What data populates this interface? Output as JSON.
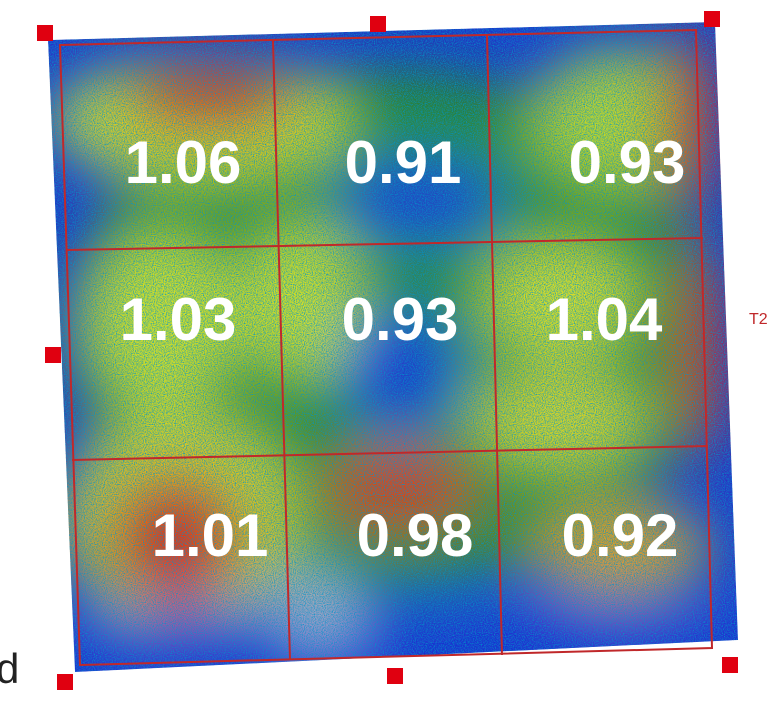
{
  "grid": {
    "rows": [
      [
        "1.06",
        "0.91",
        "0.93"
      ],
      [
        "1.03",
        "0.93",
        "1.04"
      ],
      [
        "1.01",
        "0.98",
        "0.92"
      ]
    ]
  },
  "side_label": "T2",
  "corner_text": "d"
}
